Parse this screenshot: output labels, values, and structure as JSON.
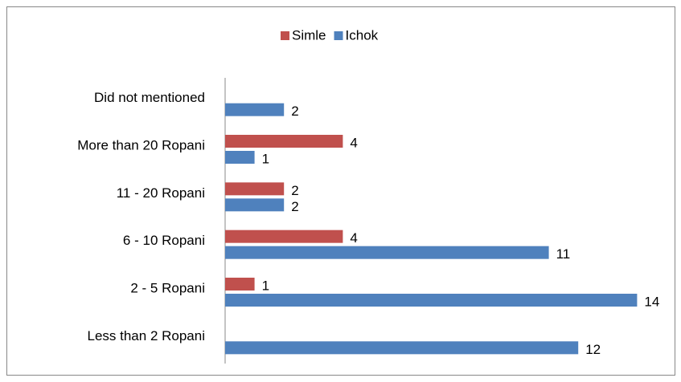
{
  "chart_data": {
    "type": "hbar",
    "categories": [
      "Did not mentioned",
      "More than 20 Ropani",
      "11 - 20 Ropani",
      "6 - 10 Ropani",
      "2 - 5 Ropani",
      "Less than 2 Ropani"
    ],
    "series": [
      {
        "name": "Simle",
        "color": "#c0504d",
        "values": [
          null,
          4,
          2,
          4,
          1,
          null
        ]
      },
      {
        "name": "Ichok",
        "color": "#4f81bd",
        "values": [
          2,
          1,
          2,
          11,
          14,
          12
        ]
      }
    ],
    "xlim": [
      0,
      15
    ],
    "legend": "top"
  }
}
